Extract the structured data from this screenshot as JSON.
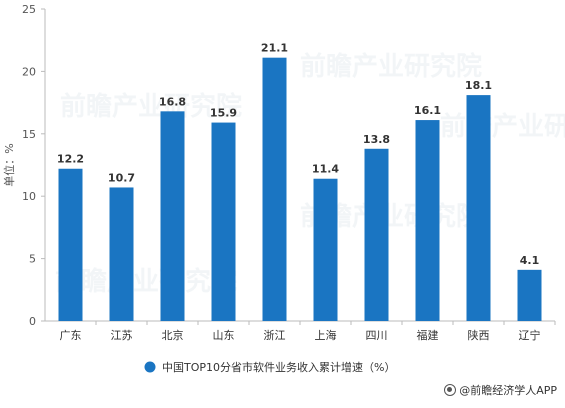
{
  "chart_data": {
    "type": "bar",
    "title": "",
    "ylabel": "单位：%",
    "xlabel": "",
    "ylim": [
      0,
      25
    ],
    "yticks": [
      0,
      5,
      10,
      15,
      20,
      25
    ],
    "grid": false,
    "legend_position": "bottom",
    "categories": [
      "广东",
      "江苏",
      "北京",
      "山东",
      "浙江",
      "上海",
      "四川",
      "福建",
      "陕西",
      "辽宁"
    ],
    "series": [
      {
        "name": "中国TOP10分省市软件业务收入累计增速（%）",
        "values": [
          12.2,
          10.7,
          16.8,
          15.9,
          21.1,
          11.4,
          13.8,
          16.1,
          18.1,
          4.1
        ],
        "labels": [
          "12.2",
          "10.7",
          "16.8",
          "15.9",
          "21.1",
          "11.4",
          "13.8",
          "16.1",
          "18.1",
          "4.1"
        ],
        "color": "#1a75c2"
      }
    ]
  },
  "watermark": "前瞻产业研究院",
  "credit": "@前瞻经济学人APP",
  "colors": {
    "axis": "#bbbbbb",
    "bar": "#1a75c2"
  }
}
